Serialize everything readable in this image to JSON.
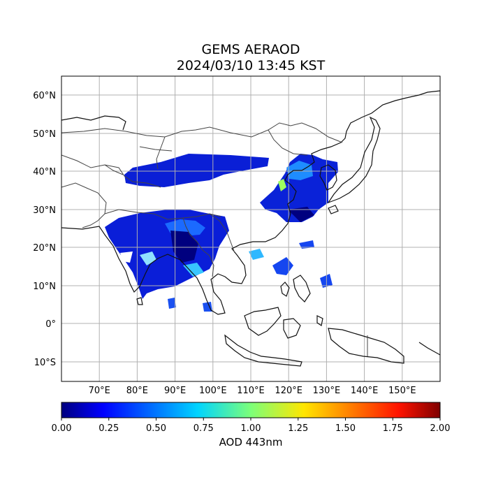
{
  "title": {
    "line1": "GEMS AERAOD",
    "line2": "2024/03/10 13:45 KST"
  },
  "map": {
    "lon_range": [
      60,
      160
    ],
    "lat_range": [
      -15,
      65
    ],
    "lon_ticks": [
      "70°E",
      "80°E",
      "90°E",
      "100°E",
      "110°E",
      "120°E",
      "130°E",
      "140°E",
      "150°E"
    ],
    "lat_ticks": [
      "60°N",
      "50°N",
      "40°N",
      "30°N",
      "20°N",
      "10°N",
      "0°",
      "10°S"
    ],
    "grid": true,
    "layers": [
      "coastlines",
      "country-borders",
      "aod-field"
    ]
  },
  "colorbar": {
    "label": "AOD 443nm",
    "min": 0.0,
    "max": 2.0,
    "colormap": "jet",
    "ticks": [
      "0.00",
      "0.25",
      "0.50",
      "0.75",
      "1.00",
      "1.25",
      "1.50",
      "1.75",
      "2.00"
    ]
  },
  "colors": {
    "low": "#00007f",
    "mid": "#00d4ff",
    "high": "#7f0000",
    "grid": "#b0b0b0"
  }
}
